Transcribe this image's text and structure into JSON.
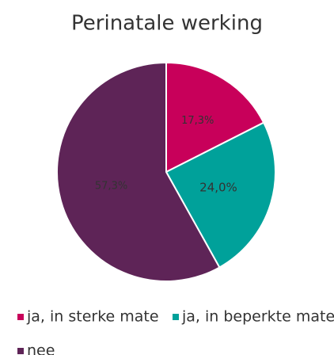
{
  "chart_data": {
    "type": "pie",
    "title": "Perinatale werking",
    "categories": [
      "ja, in sterke mate",
      "ja, in beperkte mate",
      "nee"
    ],
    "values": [
      17.3,
      24.0,
      57.3
    ],
    "value_labels": [
      "17,3%",
      "24,0%",
      "57,3%"
    ],
    "colors": [
      "#c8005a",
      "#00a19a",
      "#5e2457"
    ]
  }
}
